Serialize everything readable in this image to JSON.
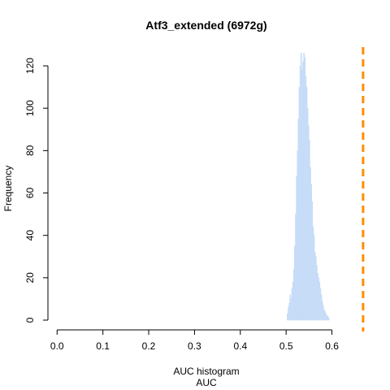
{
  "chart_data": {
    "type": "bar",
    "title": "Atf3_extended (6972g)",
    "xlabel": "AUC histogram",
    "xlabel2": "AUC",
    "ylabel": "Frequency",
    "xlim": [
      -0.02,
      0.67
    ],
    "ylim": [
      0,
      125
    ],
    "xticks": [
      "0.0",
      "0.1",
      "0.2",
      "0.3",
      "0.4",
      "0.5",
      "0.6"
    ],
    "yticks": [
      "0",
      "20",
      "40",
      "60",
      "80",
      "100",
      "120"
    ],
    "bin_width": 0.002,
    "bin_start": 0.502,
    "values": [
      3,
      6,
      8,
      12,
      10,
      15,
      18,
      24,
      35,
      50,
      68,
      80,
      95,
      110,
      120,
      126,
      118,
      122,
      126,
      124,
      115,
      110,
      100,
      92,
      85,
      72,
      64,
      56,
      44,
      40,
      32,
      30,
      26,
      22,
      20,
      18,
      15,
      12,
      9,
      7,
      5,
      4,
      3,
      2,
      2,
      1
    ],
    "threshold": 0.668,
    "colors": {
      "bars": "#c6dcf7",
      "threshold": "#ff8c00"
    }
  }
}
